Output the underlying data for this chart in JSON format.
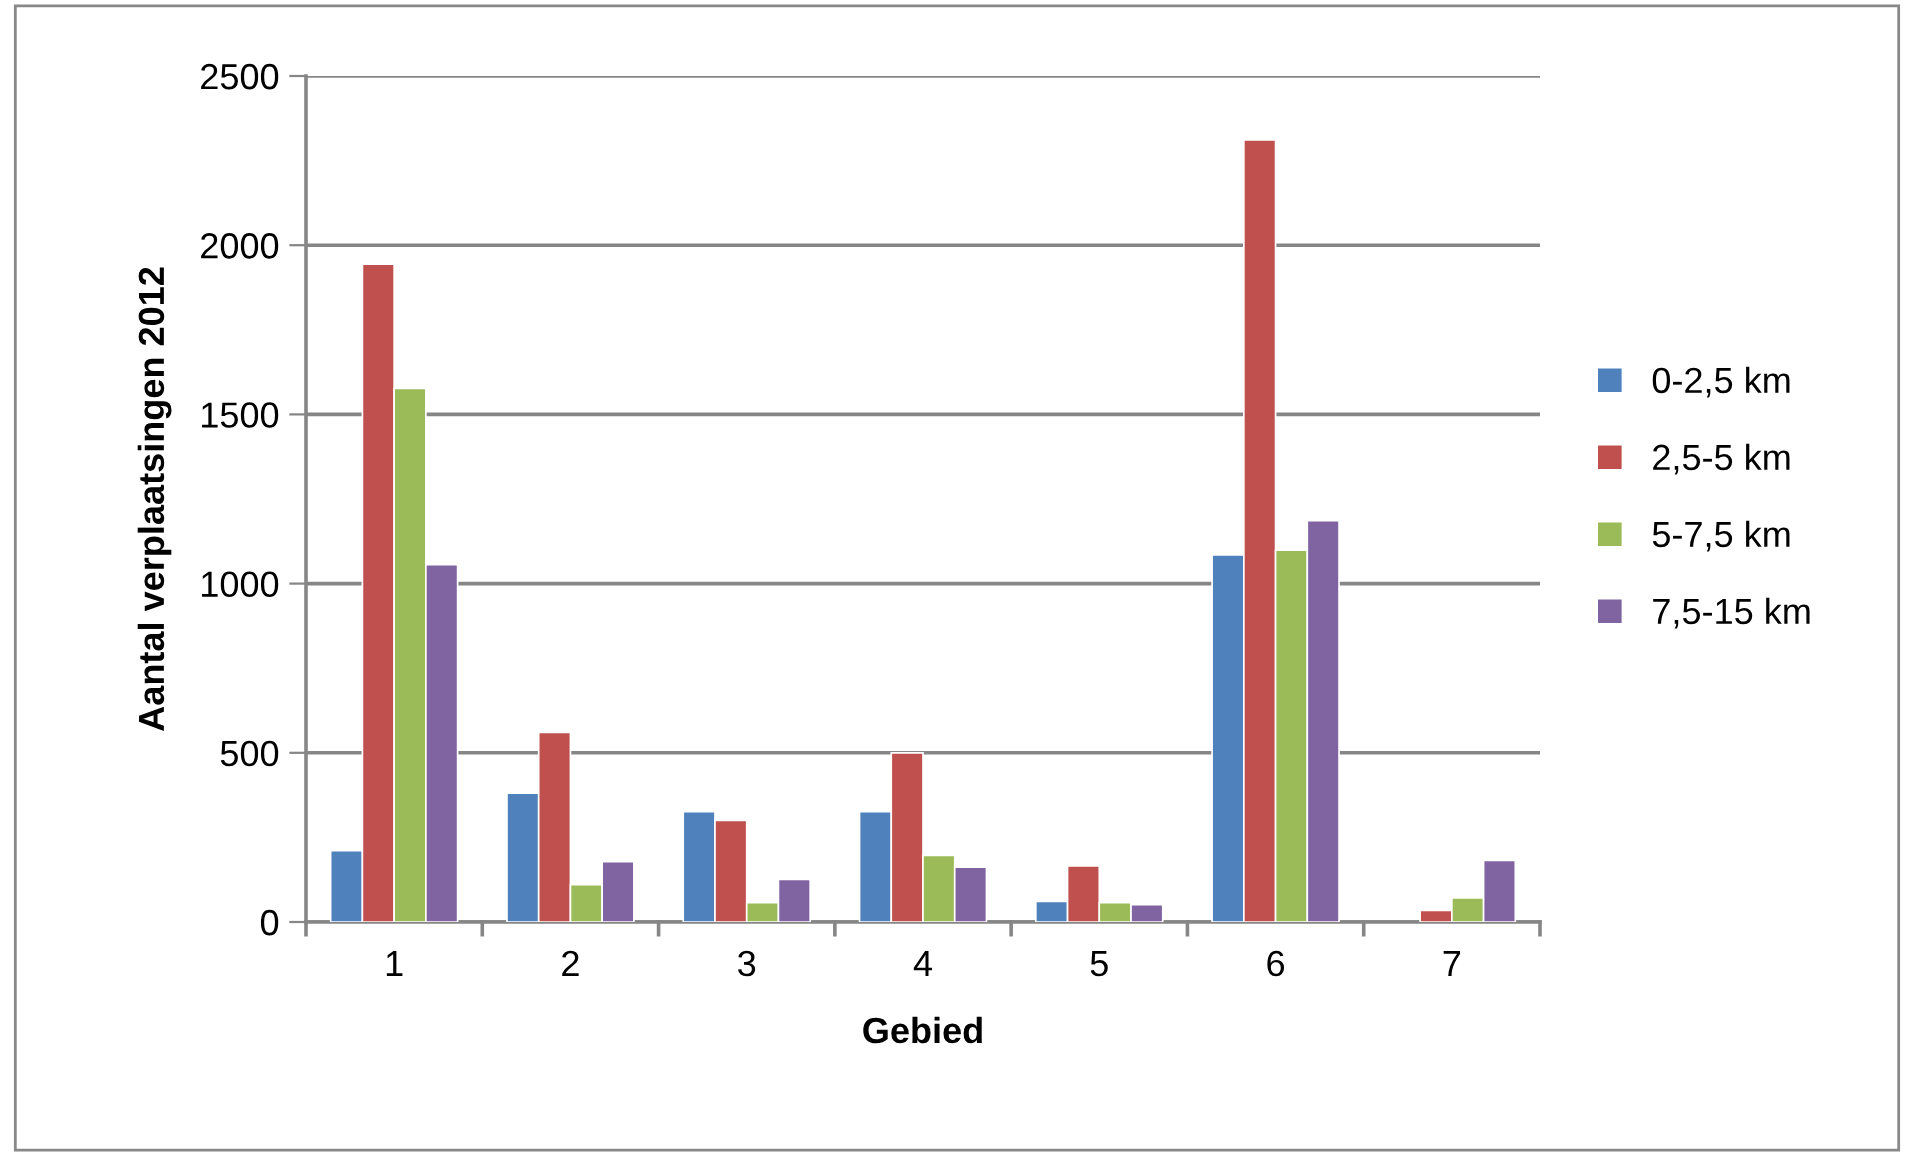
{
  "chart_data": {
    "type": "bar",
    "xlabel": "Gebied",
    "ylabel": "Aantal verplaatsingen 2012",
    "categories": [
      "1",
      "2",
      "3",
      "4",
      "5",
      "6",
      "7"
    ],
    "series": [
      {
        "name": "0-2,5 km",
        "color": "#4f81bd",
        "values": [
          211,
          381,
          326,
          326,
          61,
          1085,
          null
        ]
      },
      {
        "name": "2,5-5 km",
        "color": "#c0504d",
        "values": [
          1944,
          560,
          300,
          500,
          166,
          2311,
          34
        ]
      },
      {
        "name": "5-7,5 km",
        "color": "#9bbb59",
        "values": [
          1577,
          110,
          57,
          197,
          57,
          1099,
          71
        ]
      },
      {
        "name": "7,5-15 km",
        "color": "#8064a2",
        "values": [
          1056,
          178,
          126,
          162,
          51,
          1186,
          182
        ]
      }
    ],
    "ylim": [
      0,
      2500
    ],
    "yticks": [
      0,
      500,
      1000,
      1500,
      2000,
      2500
    ],
    "grid": "y",
    "legend": "right"
  }
}
